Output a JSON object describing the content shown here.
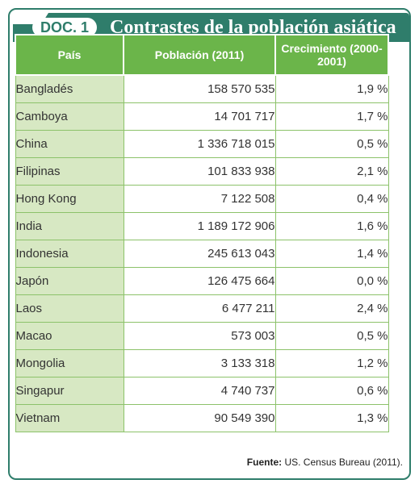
{
  "header": {
    "badge": "DOC. 1",
    "title": "Contrastes de la población asiática"
  },
  "table": {
    "columns": [
      "País",
      "Población (2011)",
      "Crecimiento (2000-2001)"
    ],
    "rows": [
      {
        "pais": "Bangladés",
        "poblacion": "158 570 535",
        "crecimiento": "1,9 %"
      },
      {
        "pais": "Camboya",
        "poblacion": "14 701 717",
        "crecimiento": "1,7 %"
      },
      {
        "pais": "China",
        "poblacion": "1 336 718 015",
        "crecimiento": "0,5 %"
      },
      {
        "pais": "Filipinas",
        "poblacion": "101 833 938",
        "crecimiento": "2,1 %"
      },
      {
        "pais": "Hong Kong",
        "poblacion": "7 122 508",
        "crecimiento": "0,4 %"
      },
      {
        "pais": "India",
        "poblacion": "1 189 172 906",
        "crecimiento": "1,6 %"
      },
      {
        "pais": "Indonesia",
        "poblacion": "245 613 043",
        "crecimiento": "1,4 %"
      },
      {
        "pais": "Japón",
        "poblacion": "126 475 664",
        "crecimiento": "0,0 %"
      },
      {
        "pais": "Laos",
        "poblacion": "6 477 211",
        "crecimiento": "2,4 %"
      },
      {
        "pais": "Macao",
        "poblacion": "573 003",
        "crecimiento": "0,5 %"
      },
      {
        "pais": "Mongolia",
        "poblacion": "3 133 318",
        "crecimiento": "1,2 %"
      },
      {
        "pais": "Singapur",
        "poblacion": "4 740 737",
        "crecimiento": "0,6 %"
      },
      {
        "pais": "Vietnam",
        "poblacion": "90 549 390",
        "crecimiento": "1,3 %"
      }
    ]
  },
  "source": {
    "label": "Fuente:",
    "text": "US. Census Bureau (2011)."
  },
  "colors": {
    "frame": "#2f7d6b",
    "header_cells": "#6bb54a",
    "country_cells": "#d7e8c3"
  }
}
